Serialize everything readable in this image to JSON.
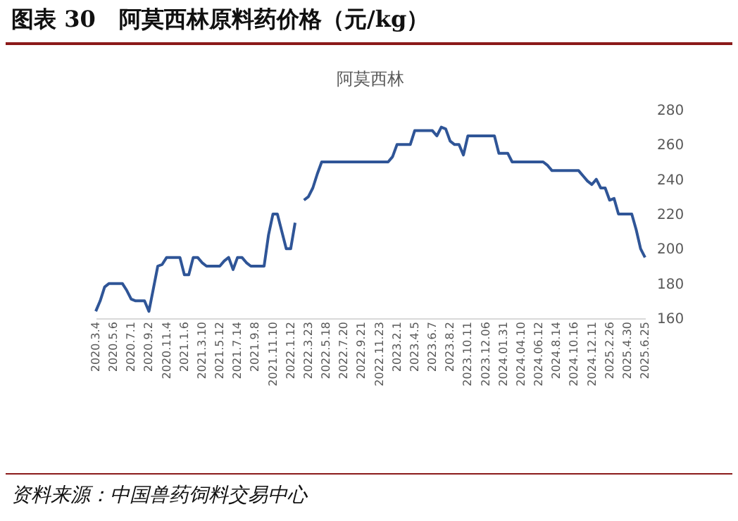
{
  "chart_data": {
    "type": "line",
    "title": "图表 30   阿莫西林原料药价格（元/kg）",
    "subtitle": "阿莫西林",
    "categories": [
      "2020.3.4",
      null,
      null,
      null,
      "2020.5.6",
      null,
      null,
      null,
      "2020.7.1",
      null,
      null,
      null,
      "2020.9.2",
      null,
      null,
      null,
      "2020.11.4",
      null,
      null,
      null,
      "2021.1.6",
      null,
      null,
      null,
      "2021.3.10",
      null,
      null,
      null,
      "2021.5.12",
      null,
      null,
      null,
      "2021.7.14",
      null,
      null,
      null,
      "2021.9.8",
      null,
      null,
      null,
      "2021.11.10",
      null,
      null,
      null,
      "2022.1.12",
      null,
      null,
      null,
      "2022.3.23",
      null,
      null,
      null,
      "2022.5.18",
      null,
      null,
      null,
      "2022.7.20",
      null,
      null,
      null,
      "2022.9.21",
      null,
      null,
      null,
      "2022.11.23",
      null,
      null,
      null,
      "2023.2.1",
      null,
      null,
      null,
      "2023.4.5",
      null,
      null,
      null,
      "2023.6.7",
      null,
      null,
      null,
      "2023.8.2",
      null,
      null,
      null,
      "2023.10.11",
      null,
      null,
      null,
      "2023.12.06",
      null,
      null,
      null,
      "2024.01.31",
      null,
      null,
      null,
      "2024.04.10",
      null,
      null,
      null,
      "2024.06.12",
      null,
      null,
      null,
      "2024.8.14",
      null,
      null,
      null,
      "2024.10.16",
      null,
      null,
      null,
      "2024.12.11",
      null,
      null,
      null,
      "2025.2.26",
      null,
      null,
      null,
      "2025.4.30",
      null,
      null,
      null,
      "2025.6.25"
    ],
    "series": [
      {
        "color": "#2f5597",
        "values": [
          164,
          170,
          178,
          180,
          180,
          180,
          180,
          176,
          171,
          170,
          170,
          170,
          164,
          177,
          190,
          191,
          195,
          195,
          195,
          195,
          185,
          185,
          195,
          195,
          192,
          190,
          190,
          190,
          190,
          193,
          195,
          188,
          195,
          195,
          192,
          190,
          190,
          190,
          190,
          208,
          220,
          220,
          210,
          200,
          200,
          215,
          null,
          228,
          230,
          235,
          243,
          250,
          250,
          250,
          250,
          250,
          250,
          250,
          250,
          250,
          250,
          250,
          250,
          250,
          250,
          250,
          250,
          253,
          260,
          260,
          260,
          260,
          268,
          268,
          268,
          268,
          268,
          265,
          270,
          269,
          262,
          260,
          260,
          254,
          265,
          265,
          265,
          265,
          265,
          265,
          265,
          255,
          255,
          255,
          250,
          250,
          250,
          250,
          250,
          250,
          250,
          250,
          248,
          245,
          245,
          245,
          245,
          245,
          245,
          245,
          242,
          239,
          237,
          240,
          235,
          235,
          228,
          229,
          220,
          220,
          220,
          220,
          211,
          200,
          195
        ]
      }
    ],
    "ylim": [
      160,
      280
    ],
    "yticks": [
      160,
      180,
      200,
      220,
      240,
      260,
      280
    ],
    "grid": false,
    "legend": false,
    "marker": "none",
    "line_style": "solid",
    "annotations": [
      "资料来源：中国兽药饲料交易中心"
    ]
  }
}
